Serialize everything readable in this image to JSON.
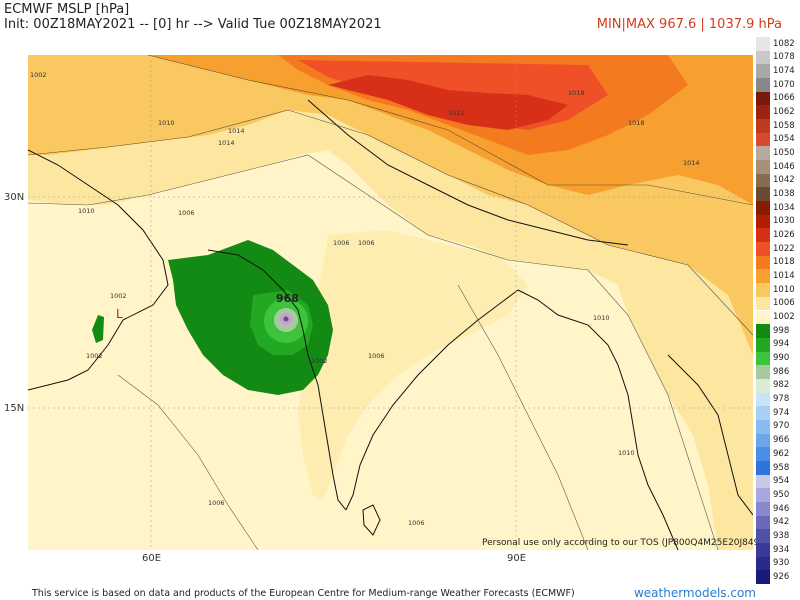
{
  "header": {
    "title": "ECMWF MSLP [hPa]",
    "init_line": "Init: 00Z18MAY2021 -- [0] hr --> Valid Tue 00Z18MAY2021",
    "minmax": "MIN|MAX 967.6 | 1037.9 hPa"
  },
  "axes": {
    "lat_labels": [
      "30N",
      "15N"
    ],
    "lon_labels": [
      "60E",
      "90E"
    ]
  },
  "map_labels": {
    "low_center_value": "968",
    "low_marker": "L",
    "isobar_values": [
      "1002",
      "1002",
      "1002",
      "1006",
      "1006",
      "1006",
      "1006",
      "1006",
      "1010",
      "1010",
      "1010",
      "1010",
      "1014",
      "1014",
      "1014",
      "1018",
      "1018",
      "1022",
      "1002",
      "1006"
    ],
    "note": "Personal use only according to our TOS (JP800Q4M25E20J849)"
  },
  "legend": {
    "levels": [
      "1082",
      "1078",
      "1074",
      "1070",
      "1066",
      "1062",
      "1058",
      "1054",
      "1050",
      "1046",
      "1042",
      "1038",
      "1034",
      "1030",
      "1026",
      "1022",
      "1018",
      "1014",
      "1010",
      "1006",
      "1002",
      "998",
      "994",
      "990",
      "986",
      "982",
      "978",
      "974",
      "970",
      "966",
      "962",
      "958",
      "954",
      "950",
      "946",
      "942",
      "938",
      "934",
      "930",
      "926"
    ],
    "colors": [
      "#e6e6e6",
      "#c8c8c8",
      "#a8a8a8",
      "#888888",
      "#7a1a0a",
      "#9a2410",
      "#c03a20",
      "#d84a30",
      "#b8a8a0",
      "#a89078",
      "#8a6a50",
      "#6a4a30",
      "#8a1a00",
      "#b02000",
      "#d83018",
      "#f05028",
      "#f47a20",
      "#f7a030",
      "#f9c860",
      "#fde7a0",
      "#fff5c8",
      "#138a13",
      "#23a823",
      "#3cc43c",
      "#a8c8a0",
      "#dcebd8",
      "#c8e4f8",
      "#a8d0f4",
      "#88bcf0",
      "#6aa6ec",
      "#4a8ee6",
      "#2e74dc",
      "#c8c8e8",
      "#a8a8dc",
      "#8888cc",
      "#6a6abc",
      "#5050a8",
      "#3a3a98",
      "#2a2a88",
      "#1a1a78"
    ]
  },
  "footer": {
    "text": "This service is based on data and products of the European Centre for Medium-range Weather Forecasts (ECMWF)",
    "brand": "weathermodels.com"
  }
}
